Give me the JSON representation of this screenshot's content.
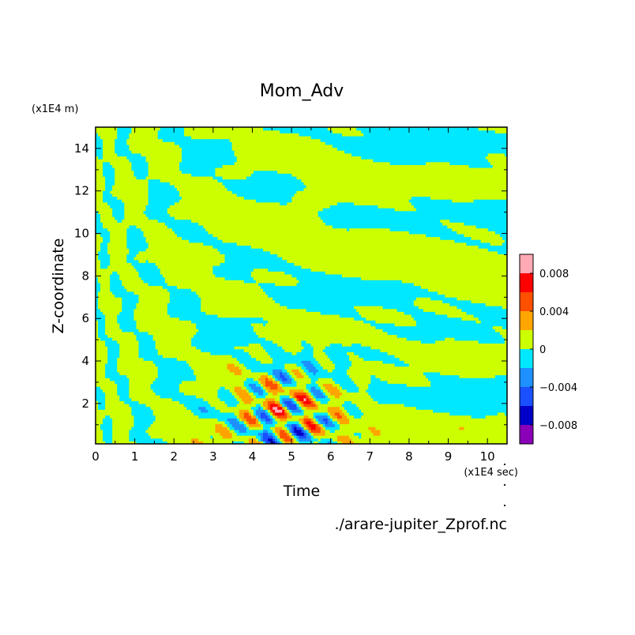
{
  "chart_data": {
    "type": "heatmap",
    "title": "Mom_Adv",
    "xlabel": "Time",
    "ylabel": "Z-coordinate",
    "x_unit": "(x1E4 sec)",
    "y_unit": "(x1E4 m)",
    "xlim": [
      0,
      10.5
    ],
    "ylim": [
      0.1,
      15
    ],
    "x_ticks": [
      0,
      1,
      2,
      3,
      4,
      5,
      6,
      7,
      8,
      9,
      10
    ],
    "x_tick_labels": [
      "0",
      "1",
      "2",
      "3",
      "4",
      "5",
      "6",
      "7",
      "8",
      "9",
      "10"
    ],
    "y_ticks": [
      2,
      4,
      6,
      8,
      10,
      12,
      14
    ],
    "y_tick_labels": [
      "2",
      "4",
      "6",
      "8",
      "10",
      "12",
      "14"
    ],
    "source_file": "./arare-jupiter_Zprof.nc",
    "colorbar": {
      "levels": [
        -0.01,
        -0.008,
        -0.006,
        -0.004,
        -0.002,
        0,
        0.002,
        0.004,
        0.006,
        0.008,
        0.01
      ],
      "colors": [
        "#8a00b8",
        "#0000c8",
        "#1a50ff",
        "#1e90ff",
        "#00e8ff",
        "#ccff00",
        "#ffa500",
        "#ff5000",
        "#ff0000",
        "#ffaab4"
      ],
      "tick_values": [
        0.008,
        0.004,
        0,
        -0.004,
        -0.008
      ],
      "tick_labels": [
        "0.008",
        "0.004",
        "0",
        "−0.004",
        "−0.008"
      ]
    },
    "features": [
      {
        "description": "field of alternating small positive/negative patches",
        "x_range": [
          0,
          10.5
        ],
        "y_range": [
          0.1,
          15
        ]
      },
      {
        "description": "strong positive and negative anomalies near surface",
        "x_range": [
          3.5,
          6.2
        ],
        "y_range": [
          0.1,
          3.6
        ]
      }
    ]
  }
}
